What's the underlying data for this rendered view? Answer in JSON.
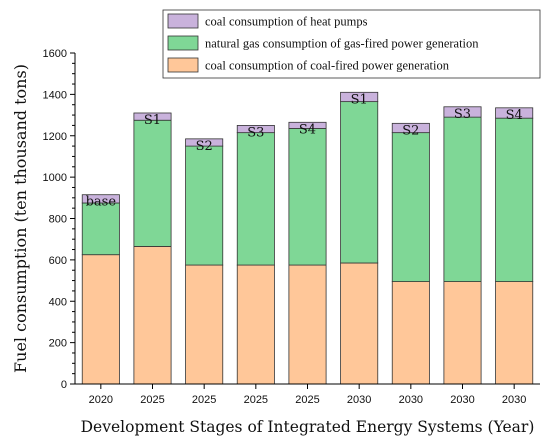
{
  "chart_data": {
    "type": "bar",
    "stacked": true,
    "title": "",
    "xlabel": "Development Stages of Integrated Energy Systems (Year)",
    "ylabel": "Fuel consumption (ten thousand tons)",
    "ylim": [
      0,
      1600
    ],
    "yticks": [
      0,
      200,
      400,
      600,
      800,
      1000,
      1200,
      1400,
      1600
    ],
    "categories": [
      "2020",
      "2025",
      "2025",
      "2025",
      "2025",
      "2030",
      "2030",
      "2030",
      "2030"
    ],
    "bar_labels": [
      "base",
      "S1",
      "S2",
      "S3",
      "S4",
      "S1",
      "S2",
      "S3",
      "S4"
    ],
    "series": [
      {
        "name": "coal consumption of coal-fired power generation",
        "color": "#ffc799",
        "values": [
          625,
          665,
          575,
          575,
          575,
          585,
          495,
          495,
          495
        ]
      },
      {
        "name": "natural gas consumption of gas-fired power generation",
        "color": "#7fd796",
        "values": [
          250,
          610,
          575,
          640,
          660,
          780,
          720,
          795,
          790
        ]
      },
      {
        "name": "coal consumption of heat pumps",
        "color": "#c9b2dc",
        "values": [
          40,
          35,
          35,
          35,
          30,
          45,
          45,
          50,
          50
        ]
      }
    ],
    "legend_position": "top-right",
    "legend_order": [
      2,
      1,
      0
    ],
    "grid": false
  }
}
